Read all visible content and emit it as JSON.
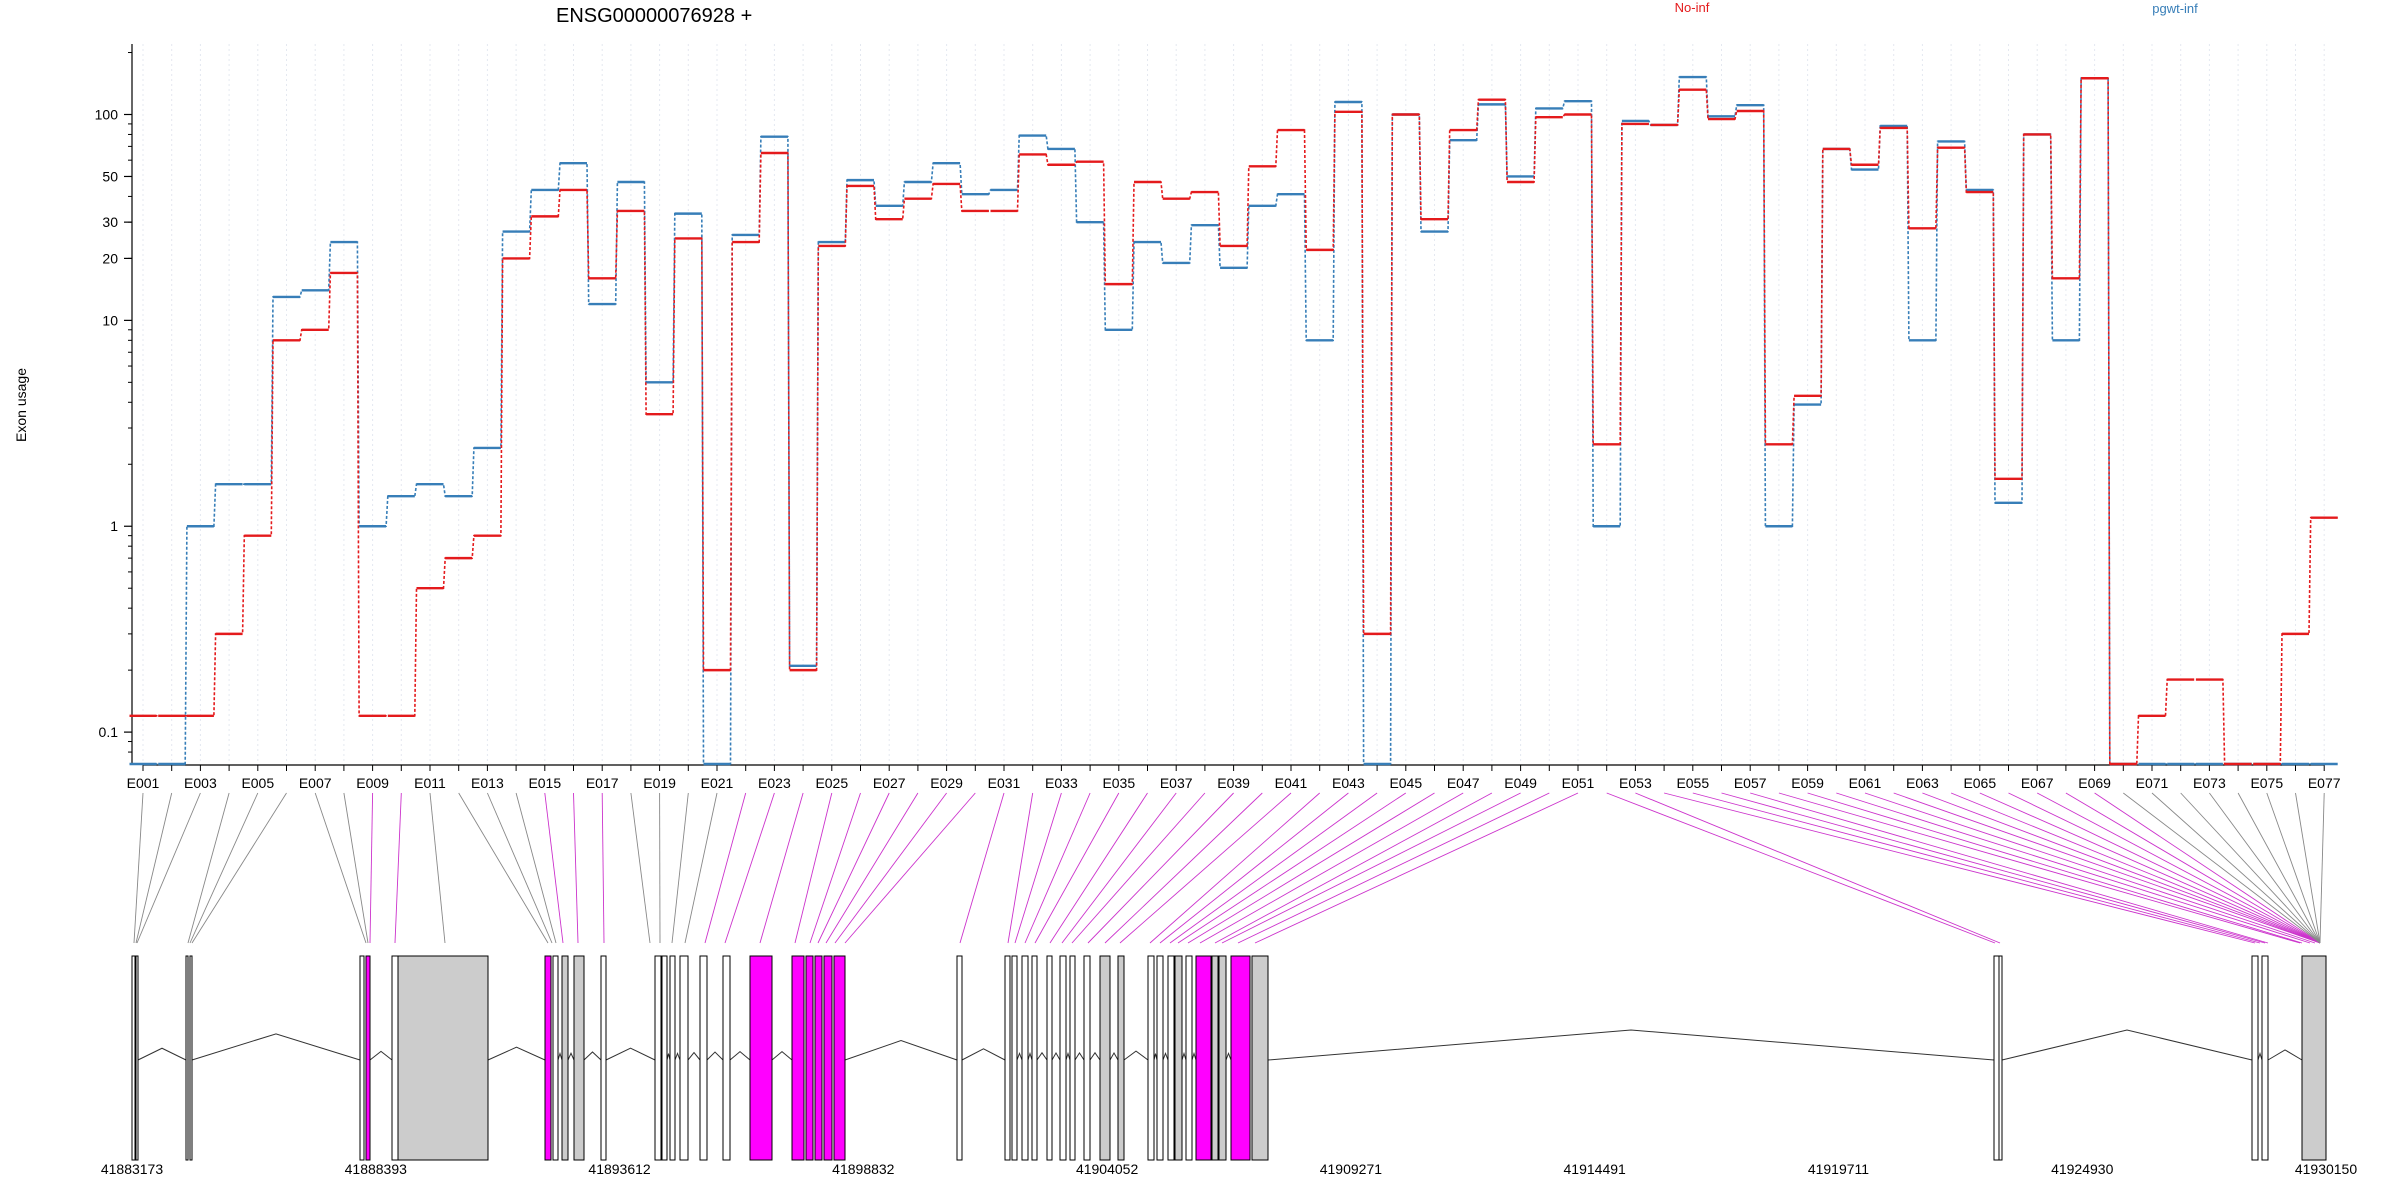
{
  "chart_data": {
    "type": "line",
    "title": "ENSG00000076928 +",
    "ylabel": "Exon usage",
    "yscale": "log",
    "ylim": [
      0.07,
      220
    ],
    "yticks": [
      "0.1",
      "1",
      "10",
      "20",
      "30",
      "50",
      "100"
    ],
    "categories": [
      "E001",
      "E002",
      "E003",
      "E004",
      "E005",
      "E006",
      "E007",
      "E008",
      "E009",
      "E010",
      "E011",
      "E012",
      "E013",
      "E014",
      "E015",
      "E016",
      "E017",
      "E018",
      "E019",
      "E020",
      "E021",
      "E022",
      "E023",
      "E024",
      "E025",
      "E026",
      "E027",
      "E028",
      "E029",
      "E030",
      "E031",
      "E032",
      "E033",
      "E034",
      "E035",
      "E036",
      "E037",
      "E038",
      "E039",
      "E040",
      "E041",
      "E042",
      "E043",
      "E044",
      "E045",
      "E046",
      "E047",
      "E048",
      "E049",
      "E050",
      "E051",
      "E052",
      "E053",
      "E054",
      "E055",
      "E056",
      "E057",
      "E058",
      "E059",
      "E060",
      "E061",
      "E062",
      "E063",
      "E064",
      "E065",
      "E066",
      "E067",
      "E068",
      "E069",
      "E070",
      "E071",
      "E072",
      "E073",
      "E074",
      "E075",
      "E076",
      "E077"
    ],
    "tick_labels": [
      "E001",
      "E003",
      "E005",
      "E007",
      "E009",
      "E011",
      "E013",
      "E015",
      "E017",
      "E019",
      "E021",
      "E023",
      "E025",
      "E027",
      "E029",
      "E031",
      "E033",
      "E035",
      "E037",
      "E039",
      "E041",
      "E043",
      "E045",
      "E047",
      "E049",
      "E051",
      "E053",
      "E055",
      "E057",
      "E059",
      "E061",
      "E063",
      "E065",
      "E067",
      "E069",
      "E071",
      "E073",
      "E075",
      "E077"
    ],
    "series": [
      {
        "name": "No-inf",
        "color": "#e41a1c",
        "values": [
          0.12,
          0.12,
          0.12,
          0.3,
          0.9,
          8,
          9,
          17,
          0.12,
          0.12,
          0.5,
          0.7,
          0.9,
          20,
          32,
          43,
          16,
          34,
          3.5,
          25,
          0.2,
          24,
          65,
          0.2,
          23,
          45,
          31,
          39,
          46,
          34,
          34,
          64,
          57,
          59,
          15,
          47,
          39,
          42,
          23,
          56,
          84,
          22,
          103,
          0.3,
          100,
          31,
          84,
          118,
          47,
          97,
          100,
          2.5,
          90,
          89,
          132,
          95,
          104,
          2.5,
          4.3,
          68,
          57,
          86,
          28,
          69,
          42,
          1.7,
          80,
          16,
          150,
          0.07,
          0.12,
          0.18,
          0.18,
          0.07,
          0.07,
          0.3,
          1.1
        ]
      },
      {
        "name": "pgwt-inf",
        "color": "#377eb8",
        "values": [
          0.07,
          0.07,
          1,
          1.6,
          1.6,
          13,
          14,
          24,
          1,
          1.4,
          1.6,
          1.4,
          2.4,
          27,
          43,
          58,
          12,
          47,
          5,
          33,
          0.07,
          26,
          78,
          0.21,
          24,
          48,
          36,
          47,
          58,
          41,
          43,
          79,
          68,
          30,
          9,
          24,
          19,
          29,
          18,
          36,
          41,
          8,
          115,
          0.07,
          100,
          27,
          75,
          112,
          50,
          107,
          116,
          1,
          93,
          89,
          152,
          98,
          111,
          1,
          3.9,
          68,
          54,
          88,
          8,
          74,
          43,
          1.3,
          80,
          8,
          150,
          0.07,
          0.07,
          0.07,
          0.07,
          0.07,
          0.07,
          0.07,
          0.07
        ]
      }
    ],
    "legend": [
      "No-inf",
      "pgwt-inf"
    ],
    "legend_position": "top",
    "grid": "vertical dotted",
    "gene_model": {
      "coordinates": [
        "41883173",
        "41888393",
        "41893612",
        "41898832",
        "41904052",
        "41909271",
        "41914491",
        "41919711",
        "41924930",
        "41930150"
      ],
      "highlight_color": "#ff00ff",
      "exon_color": "#cccccc"
    }
  }
}
